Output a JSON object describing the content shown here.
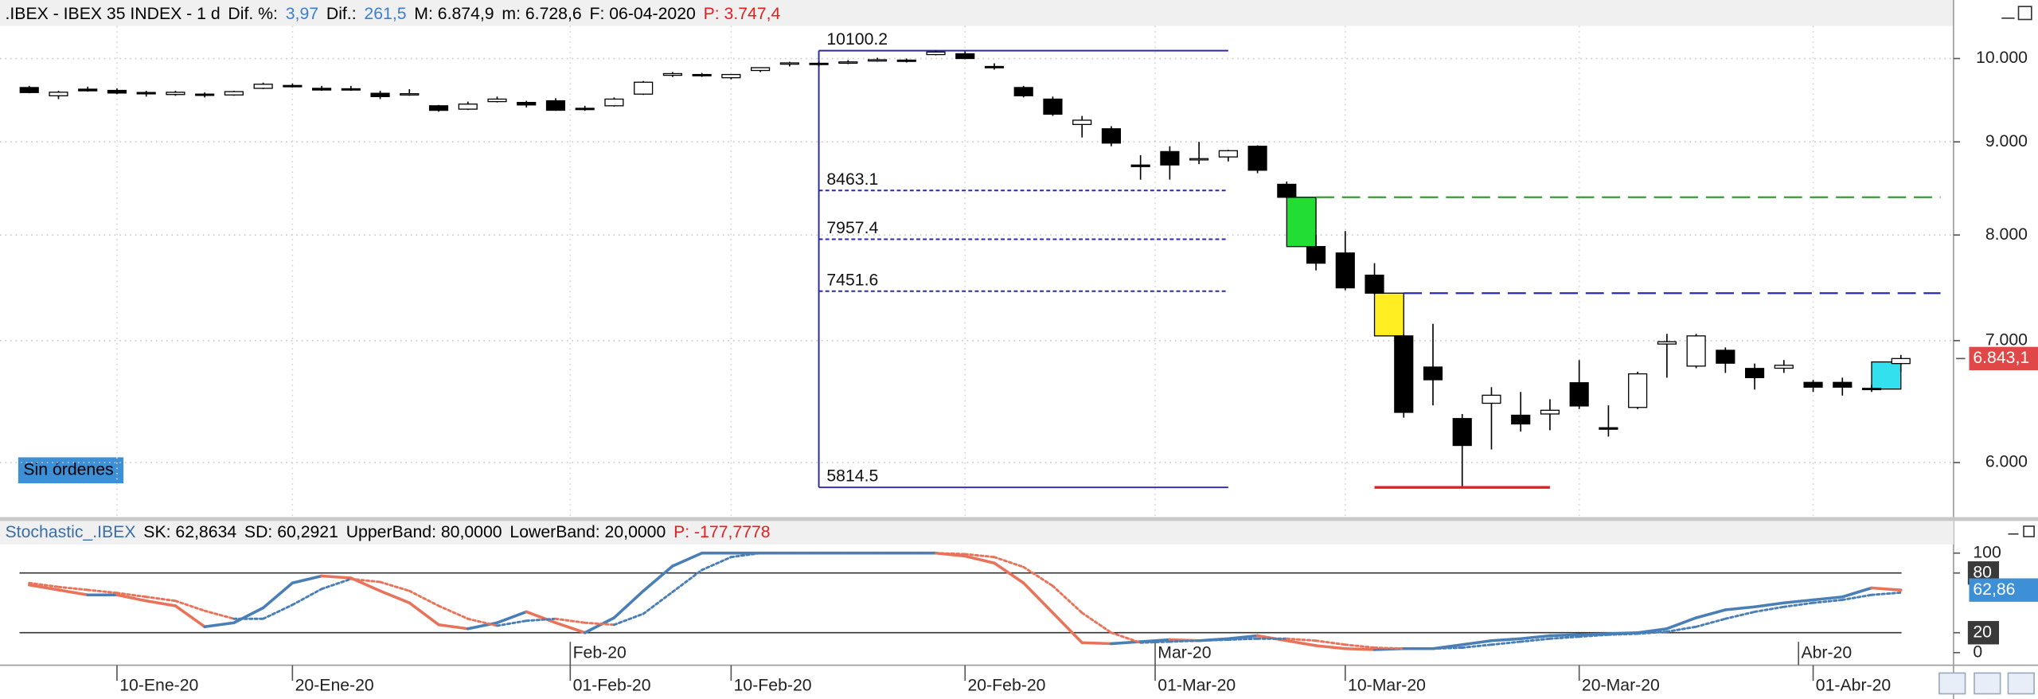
{
  "header": [
    {
      "text": ".IBEX - IBEX 35 INDEX - 1 d",
      "color": "#000000"
    },
    {
      "text": "Dif. %:",
      "color": "#000000"
    },
    {
      "text": "3,97",
      "color": "#3a7fd0"
    },
    {
      "text": "Dif.:",
      "color": "#000000"
    },
    {
      "text": "261,5",
      "color": "#3a7fd0"
    },
    {
      "text": "M: 6.874,9",
      "color": "#000000"
    },
    {
      "text": "m: 6.728,6",
      "color": "#000000"
    },
    {
      "text": "F: 06-04-2020",
      "color": "#000000"
    },
    {
      "text": "P: 3.747,4",
      "color": "#e02020"
    }
  ],
  "orders_button": "Sin órdenes",
  "chart_data": [
    {
      "type": "candlestick",
      "x": [
        "2020-01-07",
        "2020-01-08",
        "2020-01-09",
        "2020-01-10",
        "2020-01-13",
        "2020-01-14",
        "2020-01-15",
        "2020-01-16",
        "2020-01-17",
        "2020-01-20",
        "2020-01-21",
        "2020-01-22",
        "2020-01-23",
        "2020-01-24",
        "2020-01-27",
        "2020-01-28",
        "2020-01-29",
        "2020-01-30",
        "2020-01-31",
        "2020-02-03",
        "2020-02-04",
        "2020-02-05",
        "2020-02-06",
        "2020-02-07",
        "2020-02-10",
        "2020-02-11",
        "2020-02-12",
        "2020-02-13",
        "2020-02-14",
        "2020-02-17",
        "2020-02-18",
        "2020-02-19",
        "2020-02-20",
        "2020-02-21",
        "2020-02-24",
        "2020-02-25",
        "2020-02-26",
        "2020-02-27",
        "2020-02-28",
        "2020-03-02",
        "2020-03-03",
        "2020-03-04",
        "2020-03-05",
        "2020-03-06",
        "2020-03-09",
        "2020-03-10",
        "2020-03-11",
        "2020-03-12",
        "2020-03-13",
        "2020-03-16",
        "2020-03-17",
        "2020-03-18",
        "2020-03-19",
        "2020-03-20",
        "2020-03-23",
        "2020-03-24",
        "2020-03-25",
        "2020-03-26",
        "2020-03-27",
        "2020-03-30",
        "2020-03-31",
        "2020-04-01",
        "2020-04-02",
        "2020-04-03",
        "2020-04-06"
      ],
      "open": [
        9640,
        9540,
        9620,
        9605,
        9580,
        9555,
        9560,
        9550,
        9630,
        9665,
        9630,
        9625,
        9570,
        9560,
        9420,
        9380,
        9470,
        9460,
        9480,
        9390,
        9420,
        9560,
        9790,
        9800,
        9760,
        9850,
        9930,
        9940,
        9950,
        9970,
        9980,
        10050,
        10060,
        9900,
        9640,
        9500,
        9200,
        9150,
        8740,
        8890,
        8800,
        8830,
        8950,
        8530,
        7884,
        7820,
        7604,
        7042,
        6770,
        6343,
        6467,
        6370,
        6380,
        6637,
        6270,
        6433,
        6970,
        6778,
        6915,
        6758,
        6760,
        6640,
        6640,
        6590,
        6800
      ],
      "high": [
        9660,
        9600,
        9650,
        9630,
        9600,
        9600,
        9580,
        9600,
        9700,
        9690,
        9660,
        9660,
        9600,
        9620,
        9430,
        9470,
        9530,
        9480,
        9510,
        9420,
        9520,
        9720,
        9830,
        9820,
        9805,
        9890,
        9960,
        9960,
        9980,
        10010,
        10000,
        10100.2,
        10090,
        9940,
        9660,
        9530,
        9300,
        9180,
        8850,
        8950,
        9000,
        8910,
        8960,
        8560,
        8000,
        8040,
        7720,
        7060,
        7150,
        6380,
        6600,
        6560,
        6500,
        6830,
        6450,
        6730,
        7060,
        7060,
        6940,
        6800,
        6830,
        6660,
        6680,
        6620,
        6874.9
      ],
      "low": [
        9570,
        9500,
        9590,
        9560,
        9530,
        9540,
        9520,
        9540,
        9620,
        9640,
        9600,
        9600,
        9500,
        9540,
        9350,
        9370,
        9460,
        9400,
        9360,
        9360,
        9410,
        9550,
        9770,
        9770,
        9740,
        9830,
        9900,
        9900,
        9930,
        9960,
        9950,
        10040,
        9990,
        9860,
        9520,
        9300,
        9050,
        8950,
        8580,
        8580,
        8750,
        8780,
        8650,
        8380,
        7650,
        7460,
        7420,
        6350,
        6450,
        5814.5,
        6100,
        6240,
        6250,
        6420,
        6200,
        6420,
        6680,
        6760,
        6720,
        6580,
        6720,
        6560,
        6530,
        6560,
        6728.6
      ],
      "close": [
        9579,
        9583,
        9600,
        9573,
        9563,
        9582,
        9545,
        9590,
        9680,
        9650,
        9610,
        9617,
        9530,
        9565,
        9366,
        9440,
        9500,
        9430,
        9367,
        9380,
        9500,
        9705,
        9811,
        9790,
        9800,
        9885,
        9945,
        9929,
        9957,
        9985,
        9970,
        10083,
        10000,
        9886,
        9540,
        9320,
        9250,
        8986,
        8723,
        8741,
        8811,
        8900,
        8683,
        8391,
        7720,
        7483,
        7433,
        6393,
        6662,
        6131,
        6533,
        6300,
        6410,
        6445,
        6258,
        6712,
        6990,
        7042,
        6803,
        6680,
        6785,
        6600,
        6600,
        6581,
        6843.1
      ],
      "up_color": "#ffffff",
      "down_color": "#000000",
      "edge_color": "#000000",
      "log_scale": true,
      "grid": true,
      "ylim": [
        5600,
        10420
      ],
      "yticks": [
        {
          "value": 6000,
          "label": "6.000"
        },
        {
          "value": 7000,
          "label": "7.000"
        },
        {
          "value": 8000,
          "label": "8.000"
        },
        {
          "value": 9000,
          "label": "9.000"
        },
        {
          "value": 10000,
          "label": "10.000"
        }
      ],
      "xticks": [
        {
          "value": "2020-01-10",
          "label": "10-Ene-20"
        },
        {
          "value": "2020-01-20",
          "label": "20-Ene-20"
        },
        {
          "value": "2020-02-01",
          "label": "01-Feb-20"
        },
        {
          "value": "2020-02-10",
          "label": "10-Feb-20"
        },
        {
          "value": "2020-02-20",
          "label": "20-Feb-20"
        },
        {
          "value": "2020-03-01",
          "label": "01-Mar-20"
        },
        {
          "value": "2020-03-10",
          "label": "10-Mar-20"
        },
        {
          "value": "2020-03-20",
          "label": "20-Mar-20"
        },
        {
          "value": "2020-04-01",
          "label": "01-Abr-20"
        }
      ],
      "last_price": {
        "value": 6843.1,
        "label": "6.843,1",
        "color": "#e04848"
      },
      "fib": {
        "from": "2020-02-13",
        "to": "2020-03-04",
        "levels": [
          10100.2,
          8463.1,
          7957.4,
          7451.6,
          5814.5
        ],
        "color": "#2a2aa8"
      },
      "gaps": [
        {
          "from": "2020-03-06",
          "to": "2020-03-09",
          "low": 7884,
          "high": 8391,
          "color": "#22dd33"
        },
        {
          "from": "2020-03-11",
          "to": "2020-03-12",
          "low": 7042,
          "high": 7433,
          "color": "#ffee22"
        },
        {
          "from": "2020-04-03",
          "to": "2020-04-06",
          "low": 6584,
          "high": 6814,
          "color": "#33e0ee"
        }
      ],
      "lines": [
        {
          "from": "2020-03-09",
          "value": 8391,
          "color": "#3a9a3a",
          "style": "dashed",
          "extend_right": true
        },
        {
          "from": "2020-03-12",
          "value": 7433,
          "color": "#2a2ab0",
          "style": "dashed",
          "extend_right": true
        },
        {
          "from": "2020-03-11",
          "to": "2020-03-19",
          "value": 5814.5,
          "color": "#e02020",
          "style": "solid",
          "extend_right": false
        }
      ]
    },
    {
      "type": "line",
      "header": [
        {
          "text": "Stochastic_.IBEX",
          "color": "#3a6ea5"
        },
        {
          "text": "SK: 62,8634",
          "color": "#000000"
        },
        {
          "text": "SD: 60,2921",
          "color": "#000000"
        },
        {
          "text": "UpperBand: 80,0000",
          "color": "#000000"
        },
        {
          "text": "LowerBand: 20,0000",
          "color": "#000000"
        },
        {
          "text": "P: -177,7778",
          "color": "#e02020"
        }
      ],
      "rise_color": "#4a7fb5",
      "fall_color": "#e8735a",
      "series": [
        {
          "style": "solid",
          "values": [
            68,
            63,
            58,
            58,
            52,
            47,
            26,
            30,
            45,
            70,
            77,
            75,
            62,
            50,
            28,
            24,
            30,
            41,
            30,
            20,
            35,
            62,
            87,
            100,
            100,
            100,
            100,
            100,
            100,
            100,
            100,
            100,
            97,
            90,
            70,
            40,
            10,
            9,
            11,
            13,
            12,
            14,
            17,
            12,
            7,
            4,
            3,
            4,
            4,
            8,
            12,
            14,
            17,
            18,
            19,
            20,
            24,
            35,
            43,
            46,
            50,
            53,
            56,
            65,
            62.86
          ]
        },
        {
          "style": "dotted",
          "values": [
            70,
            66,
            63,
            60,
            56,
            52,
            42,
            34,
            34,
            48,
            64,
            74,
            71,
            62,
            47,
            34,
            27,
            32,
            34,
            30,
            28,
            39,
            61,
            83,
            96,
            100,
            100,
            100,
            100,
            100,
            100,
            100,
            99,
            96,
            86,
            67,
            40,
            20,
            10,
            11,
            12,
            13,
            14,
            14,
            12,
            8,
            5,
            4,
            4,
            5,
            8,
            11,
            14,
            16,
            18,
            19,
            21,
            26,
            34,
            41,
            46,
            50,
            53,
            58,
            60.29
          ]
        }
      ],
      "bands": [
        80,
        20
      ],
      "ylim": [
        0,
        100
      ],
      "yticks": [
        0,
        20,
        80,
        100
      ],
      "xticks": [
        {
          "value": "2020-02",
          "label": "Feb-20"
        },
        {
          "value": "2020-03",
          "label": "Mar-20"
        },
        {
          "value": "2020-04",
          "label": "Abr-20"
        }
      ],
      "last_value": {
        "value": 62.86,
        "label": "62,86",
        "color": "#3d8fd6"
      }
    }
  ]
}
